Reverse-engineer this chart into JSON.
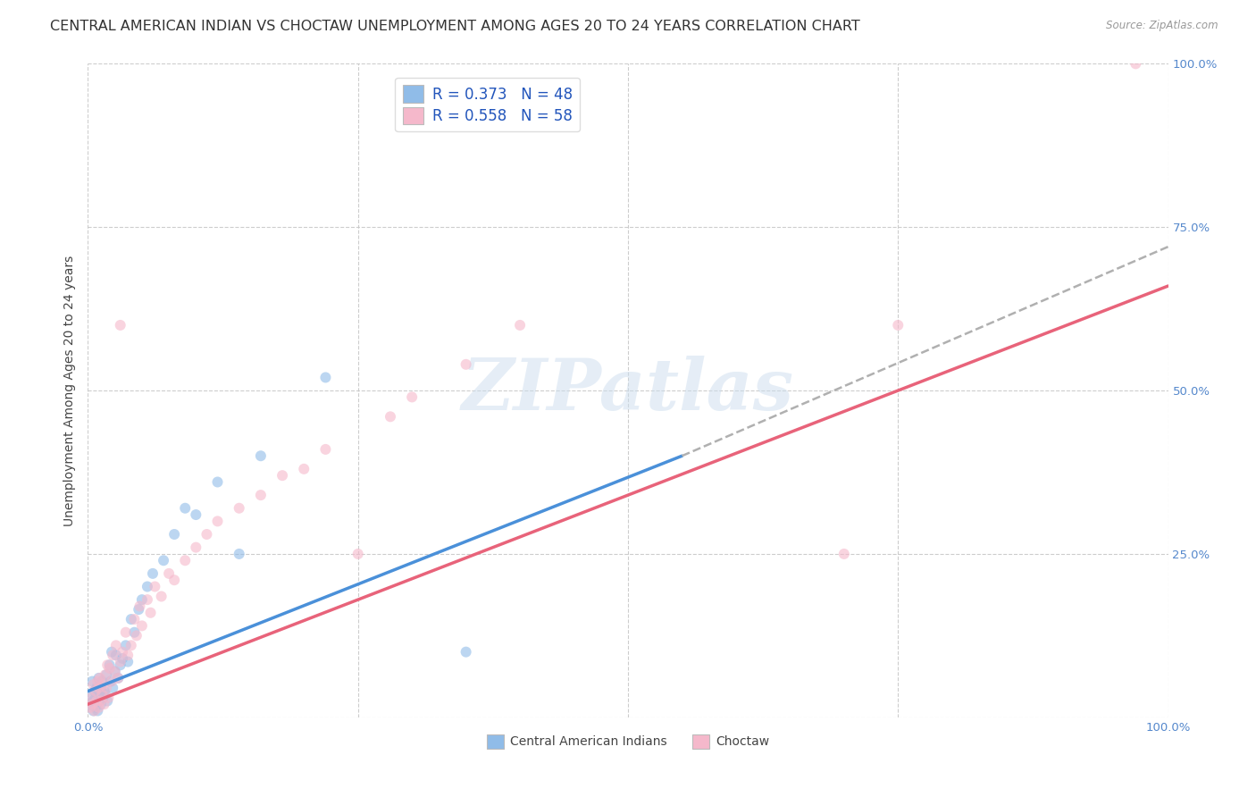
{
  "title": "CENTRAL AMERICAN INDIAN VS CHOCTAW UNEMPLOYMENT AMONG AGES 20 TO 24 YEARS CORRELATION CHART",
  "source": "Source: ZipAtlas.com",
  "ylabel": "Unemployment Among Ages 20 to 24 years",
  "xlim": [
    0,
    1.0
  ],
  "ylim": [
    0,
    1.0
  ],
  "background_color": "#ffffff",
  "grid_color": "#c8c8c8",
  "watermark_text": "ZIPatlas",
  "blue_color": "#90bce8",
  "pink_color": "#f5b8cb",
  "blue_line_color": "#4a90d9",
  "pink_line_color": "#e8637a",
  "dashed_line_color": "#b0b0b0",
  "right_tick_color": "#5588cc",
  "bottom_tick_color": "#5588cc",
  "legend_label_blue": "Central American Indians",
  "legend_label_pink": "Choctaw",
  "R_blue": "R = 0.373",
  "N_blue": "N = 48",
  "R_pink": "R = 0.558",
  "N_pink": "N = 58",
  "blue_line_x0": 0.0,
  "blue_line_x1": 0.55,
  "blue_line_y0": 0.04,
  "blue_line_y1": 0.4,
  "pink_line_x0": 0.0,
  "pink_line_x1": 1.0,
  "pink_line_y0": 0.02,
  "pink_line_y1": 0.66,
  "dash_line_x0": 0.55,
  "dash_line_x1": 1.0,
  "dash_line_y0": 0.4,
  "dash_line_y1": 0.72,
  "blue_x": [
    0.002,
    0.003,
    0.004,
    0.005,
    0.005,
    0.006,
    0.007,
    0.007,
    0.008,
    0.008,
    0.009,
    0.01,
    0.01,
    0.011,
    0.012,
    0.012,
    0.013,
    0.014,
    0.015,
    0.016,
    0.017,
    0.018,
    0.02,
    0.021,
    0.022,
    0.023,
    0.025,
    0.026,
    0.028,
    0.03,
    0.032,
    0.035,
    0.037,
    0.04,
    0.043,
    0.047,
    0.05,
    0.055,
    0.06,
    0.07,
    0.08,
    0.09,
    0.1,
    0.12,
    0.14,
    0.16,
    0.22,
    0.35
  ],
  "blue_y": [
    0.02,
    0.035,
    0.055,
    0.01,
    0.025,
    0.04,
    0.015,
    0.03,
    0.02,
    0.045,
    0.01,
    0.06,
    0.025,
    0.035,
    0.02,
    0.045,
    0.055,
    0.03,
    0.04,
    0.035,
    0.065,
    0.025,
    0.08,
    0.055,
    0.1,
    0.045,
    0.07,
    0.095,
    0.06,
    0.08,
    0.09,
    0.11,
    0.085,
    0.15,
    0.13,
    0.165,
    0.18,
    0.2,
    0.22,
    0.24,
    0.28,
    0.32,
    0.31,
    0.36,
    0.25,
    0.4,
    0.52,
    0.1
  ],
  "pink_x": [
    0.002,
    0.003,
    0.004,
    0.005,
    0.006,
    0.007,
    0.008,
    0.009,
    0.01,
    0.01,
    0.011,
    0.012,
    0.013,
    0.014,
    0.015,
    0.016,
    0.017,
    0.018,
    0.019,
    0.02,
    0.022,
    0.023,
    0.025,
    0.026,
    0.028,
    0.03,
    0.032,
    0.035,
    0.037,
    0.04,
    0.043,
    0.045,
    0.048,
    0.05,
    0.055,
    0.058,
    0.062,
    0.068,
    0.075,
    0.08,
    0.09,
    0.1,
    0.11,
    0.12,
    0.14,
    0.16,
    0.18,
    0.2,
    0.22,
    0.25,
    0.28,
    0.3,
    0.35,
    0.4,
    0.7,
    0.75,
    0.97,
    0.03
  ],
  "pink_y": [
    0.015,
    0.03,
    0.02,
    0.05,
    0.01,
    0.04,
    0.025,
    0.055,
    0.015,
    0.045,
    0.06,
    0.025,
    0.035,
    0.05,
    0.02,
    0.065,
    0.045,
    0.08,
    0.03,
    0.075,
    0.055,
    0.095,
    0.07,
    0.11,
    0.06,
    0.085,
    0.1,
    0.13,
    0.095,
    0.11,
    0.15,
    0.125,
    0.17,
    0.14,
    0.18,
    0.16,
    0.2,
    0.185,
    0.22,
    0.21,
    0.24,
    0.26,
    0.28,
    0.3,
    0.32,
    0.34,
    0.37,
    0.38,
    0.41,
    0.25,
    0.46,
    0.49,
    0.54,
    0.6,
    0.25,
    0.6,
    1.0,
    0.6
  ],
  "scatter_size": 75,
  "scatter_alpha": 0.6,
  "title_fontsize": 11.5,
  "tick_fontsize": 9.5,
  "legend_fontsize": 12,
  "ylabel_fontsize": 10,
  "line_width": 2.5
}
